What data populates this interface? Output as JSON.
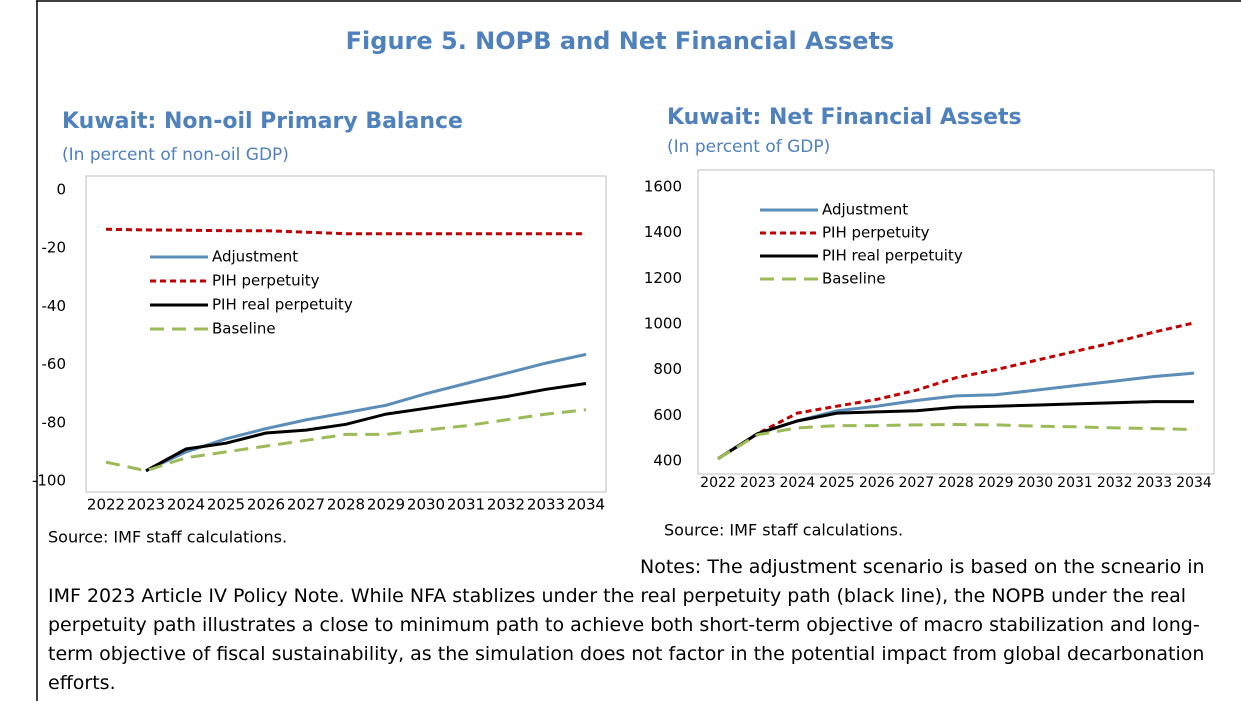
{
  "figure_title": "Figure 5. NOPB and Net Financial Assets",
  "chart_data": [
    {
      "type": "line",
      "title": "Kuwait: Non-oil Primary Balance",
      "subtitle": "(In percent of non-oil GDP)",
      "categories": [
        "2022",
        "2023",
        "2024",
        "2025",
        "2026",
        "2027",
        "2028",
        "2029",
        "2030",
        "2031",
        "2032",
        "2033",
        "2034"
      ],
      "ylim": [
        -100,
        0
      ],
      "yticks": [
        0,
        -20,
        -40,
        -60,
        -80,
        -100
      ],
      "grid": false,
      "legend": "upper left",
      "series": [
        {
          "name": "Adjustment",
          "color": "#5b8db8",
          "dash": "solid",
          "values": [
            null,
            -96.5,
            -90,
            -85.5,
            -82,
            -79,
            -76.5,
            -74,
            -70,
            -66.5,
            -63,
            -59.5,
            -56.5
          ]
        },
        {
          "name": "PIH perpetuity",
          "color": "#c00000",
          "dash": "dashed",
          "values": [
            -13.5,
            -13.7,
            -13.8,
            -14,
            -14,
            -14.5,
            -15,
            -15,
            -15,
            -15,
            -15,
            -15,
            -15
          ]
        },
        {
          "name": "PIH real perpetuity",
          "color": "#000000",
          "dash": "solid",
          "values": [
            null,
            -96.5,
            -89,
            -87,
            -83.5,
            -82.5,
            -80.5,
            -77,
            -75,
            -73,
            -71,
            -68.5,
            -66.5
          ]
        },
        {
          "name": "Baseline",
          "color": "#9bbb59",
          "dash": "longdash",
          "values": [
            -93.5,
            -96.5,
            -92,
            -90,
            -88,
            -86,
            -84,
            -84,
            -82.5,
            -81,
            -79,
            -77,
            -75.5
          ]
        }
      ],
      "source": "Source: IMF staff calculations."
    },
    {
      "type": "line",
      "title": "Kuwait: Net Financial Assets",
      "subtitle": "(In percent of GDP)",
      "categories": [
        "2022",
        "2023",
        "2024",
        "2025",
        "2026",
        "2027",
        "2028",
        "2029",
        "2030",
        "2031",
        "2032",
        "2033",
        "2034"
      ],
      "ylim": [
        400,
        1600
      ],
      "yticks": [
        400,
        600,
        800,
        1000,
        1200,
        1400,
        1600
      ],
      "grid": false,
      "legend": "upper left",
      "series": [
        {
          "name": "Adjustment",
          "color": "#5b8db8",
          "dash": "solid",
          "values": [
            410,
            520,
            575,
            620,
            640,
            665,
            685,
            690,
            710,
            730,
            750,
            770,
            785
          ]
        },
        {
          "name": "PIH perpetuity",
          "color": "#c00000",
          "dash": "dashed",
          "values": [
            410,
            520,
            610,
            640,
            670,
            710,
            765,
            800,
            840,
            880,
            920,
            965,
            1005
          ]
        },
        {
          "name": "PIH real perpetuity",
          "color": "#000000",
          "dash": "solid",
          "values": [
            410,
            520,
            575,
            610,
            615,
            620,
            635,
            640,
            645,
            650,
            655,
            660,
            660
          ]
        },
        {
          "name": "Baseline",
          "color": "#9bbb59",
          "dash": "longdash",
          "values": [
            410,
            515,
            545,
            555,
            555,
            558,
            560,
            558,
            553,
            550,
            545,
            542,
            538
          ]
        }
      ],
      "source": "Source: IMF staff calculations."
    }
  ],
  "notes": "Notes: The adjustment scenario is based on the scneario in IMF 2023 Article IV Policy Note. While NFA stablizes under the real perpetuity path (black line), the NOPB under the real perpetuity path illustrates a close to minimum path to achieve both short-term objective of macro stabilization and long-term objective of fiscal sustainability, as the simulation does not factor in the potential impact from global decarbonation efforts."
}
